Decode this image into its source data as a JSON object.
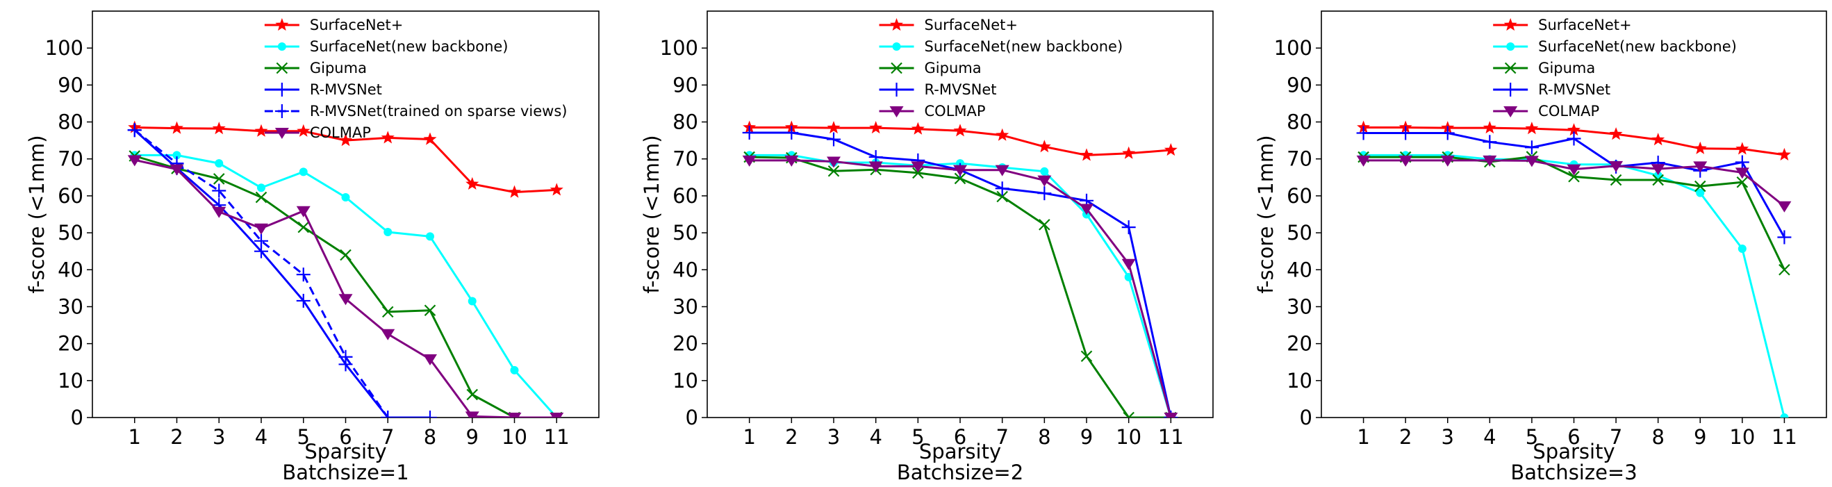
{
  "chart_data": [
    {
      "type": "line",
      "ylabel": "f-score (<1mm)",
      "xlabel": "Sparsity",
      "subtitle": "Batchsize=1",
      "x": [
        1,
        2,
        3,
        4,
        5,
        6,
        7,
        8,
        9,
        10,
        11
      ],
      "ylim": [
        0,
        110
      ],
      "xlim": [
        0,
        12
      ],
      "yticks": [
        0,
        10,
        20,
        30,
        40,
        50,
        60,
        70,
        80,
        90,
        100
      ],
      "legend_position": "top-right",
      "series": [
        {
          "name": "SurfaceNet+",
          "color": "#ff0000",
          "marker": "star",
          "dash": false,
          "values": [
            78.5,
            78.3,
            78.2,
            77.5,
            77.5,
            75.0,
            75.7,
            75.3,
            63.2,
            61.0,
            61.6
          ]
        },
        {
          "name": "SurfaceNet(new backbone)",
          "color": "#00ffff",
          "marker": "dot",
          "dash": false,
          "values": [
            71.0,
            71.0,
            68.8,
            62.2,
            66.5,
            59.6,
            50.2,
            49.0,
            31.5,
            12.8,
            0.0
          ]
        },
        {
          "name": "Gipuma",
          "color": "#008000",
          "marker": "x",
          "dash": false,
          "values": [
            70.8,
            67.4,
            64.6,
            59.6,
            51.5,
            44.0,
            28.6,
            29.0,
            6.2,
            0.0,
            0.0
          ]
        },
        {
          "name": "R-MVSNet",
          "color": "#0000ff",
          "marker": "plus",
          "dash": false,
          "values": [
            77.8,
            67.5,
            57.5,
            45.0,
            31.6,
            14.4,
            0.0,
            0.0,
            null,
            null,
            null
          ]
        },
        {
          "name": "R-MVSNet(trained on sparse views)",
          "color": "#0000ff",
          "marker": "plus",
          "dash": true,
          "values": [
            77.8,
            68.8,
            61.4,
            47.8,
            38.7,
            16.4,
            0.0,
            null,
            null,
            null,
            null
          ]
        },
        {
          "name": "COLMAP",
          "color": "#800080",
          "marker": "tri",
          "dash": false,
          "values": [
            69.7,
            67.2,
            55.7,
            51.2,
            55.9,
            32.1,
            22.6,
            15.8,
            0.3,
            0.0,
            0.0
          ]
        }
      ]
    },
    {
      "type": "line",
      "ylabel": "f-score (<1mm)",
      "xlabel": "Sparsity",
      "subtitle": "Batchsize=2",
      "x": [
        1,
        2,
        3,
        4,
        5,
        6,
        7,
        8,
        9,
        10,
        11
      ],
      "ylim": [
        0,
        110
      ],
      "xlim": [
        0,
        12
      ],
      "yticks": [
        0,
        10,
        20,
        30,
        40,
        50,
        60,
        70,
        80,
        90,
        100
      ],
      "legend_position": "top-right",
      "series": [
        {
          "name": "SurfaceNet+",
          "color": "#ff0000",
          "marker": "star",
          "dash": false,
          "values": [
            78.5,
            78.5,
            78.4,
            78.4,
            78.1,
            77.6,
            76.4,
            73.3,
            71.0,
            71.5,
            72.4
          ]
        },
        {
          "name": "SurfaceNet(new backbone)",
          "color": "#00ffff",
          "marker": "dot",
          "dash": false,
          "values": [
            71.0,
            71.0,
            69.0,
            69.0,
            68.2,
            68.8,
            67.7,
            66.6,
            55.0,
            38.0,
            0.0
          ]
        },
        {
          "name": "Gipuma",
          "color": "#008000",
          "marker": "x",
          "dash": false,
          "values": [
            70.5,
            70.3,
            66.7,
            67.1,
            66.2,
            64.7,
            59.8,
            52.2,
            16.6,
            0.0,
            0.0
          ]
        },
        {
          "name": "R-MVSNet",
          "color": "#0000ff",
          "marker": "plus",
          "dash": false,
          "values": [
            77.1,
            77.1,
            75.3,
            70.5,
            69.6,
            67.0,
            62.0,
            60.7,
            58.7,
            51.5,
            0.0
          ]
        },
        {
          "name": "COLMAP",
          "color": "#800080",
          "marker": "tri",
          "dash": false,
          "values": [
            69.6,
            69.6,
            69.3,
            68.0,
            68.0,
            67.0,
            67.0,
            64.2,
            56.5,
            41.6,
            0.0
          ]
        }
      ]
    },
    {
      "type": "line",
      "ylabel": "f-score (<1mm)",
      "xlabel": "Sparsity",
      "subtitle": "Batchsize=3",
      "x": [
        1,
        2,
        3,
        4,
        5,
        6,
        7,
        8,
        9,
        10,
        11
      ],
      "ylim": [
        0,
        110
      ],
      "xlim": [
        0,
        12
      ],
      "yticks": [
        0,
        10,
        20,
        30,
        40,
        50,
        60,
        70,
        80,
        90,
        100
      ],
      "legend_position": "top-right",
      "series": [
        {
          "name": "SurfaceNet+",
          "color": "#ff0000",
          "marker": "star",
          "dash": false,
          "values": [
            78.5,
            78.5,
            78.4,
            78.4,
            78.2,
            77.8,
            76.7,
            75.2,
            72.8,
            72.7,
            71.1
          ]
        },
        {
          "name": "SurfaceNet(new backbone)",
          "color": "#00ffff",
          "marker": "dot",
          "dash": false,
          "values": [
            71.0,
            71.0,
            71.0,
            69.9,
            69.9,
            68.5,
            68.5,
            65.5,
            60.8,
            45.7,
            0.0
          ]
        },
        {
          "name": "Gipuma",
          "color": "#008000",
          "marker": "x",
          "dash": false,
          "values": [
            70.5,
            70.5,
            70.5,
            69.2,
            70.6,
            65.2,
            64.3,
            64.3,
            62.6,
            63.7,
            40.0
          ]
        },
        {
          "name": "R-MVSNet",
          "color": "#0000ff",
          "marker": "plus",
          "dash": false,
          "values": [
            77.0,
            77.0,
            77.0,
            74.6,
            73.1,
            75.5,
            67.9,
            69.0,
            66.8,
            69.1,
            48.8
          ]
        },
        {
          "name": "COLMAP",
          "color": "#800080",
          "marker": "tri",
          "dash": false,
          "values": [
            69.6,
            69.6,
            69.6,
            69.6,
            69.5,
            67.2,
            68.1,
            67.3,
            68.0,
            66.3,
            57.2
          ]
        }
      ]
    }
  ]
}
